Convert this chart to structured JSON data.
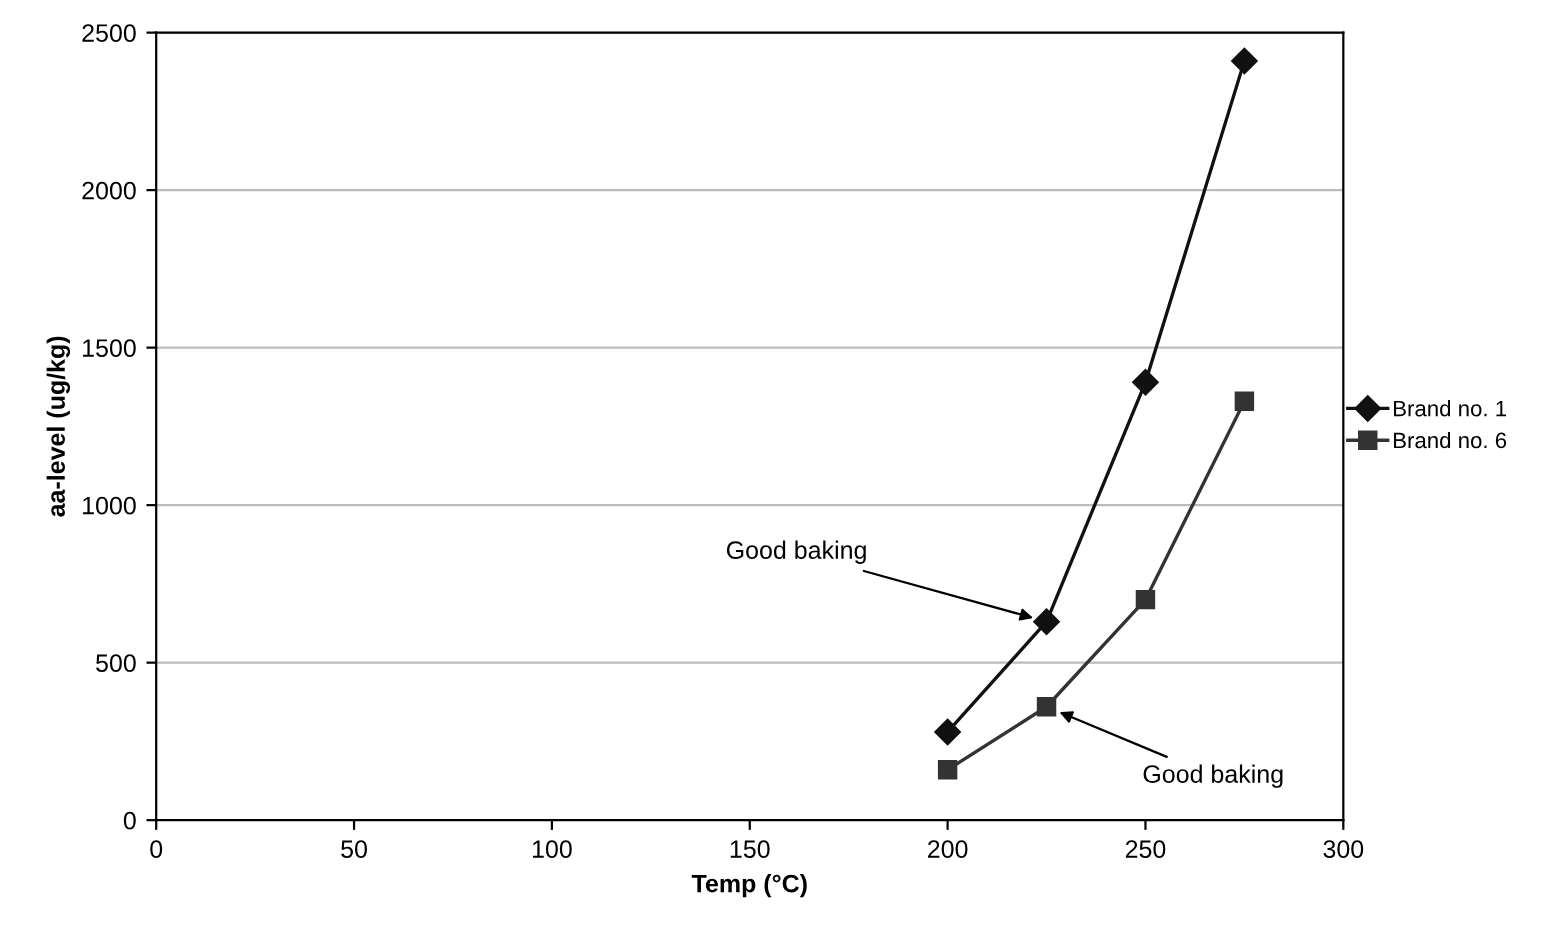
{
  "chart_data": {
    "type": "line",
    "xlabel": "Temp (°C)",
    "ylabel": "aa-level (ug/kg)",
    "x": [
      200,
      225,
      250,
      275
    ],
    "series": [
      {
        "name": "Brand no. 1",
        "color": "#111111",
        "marker": "diamond",
        "values": [
          280,
          630,
          1390,
          2410
        ]
      },
      {
        "name": "Brand no. 6",
        "color": "#333333",
        "marker": "square",
        "values": [
          160,
          360,
          700,
          1330
        ]
      }
    ],
    "xlim": [
      0,
      300
    ],
    "xticks": [
      0,
      50,
      100,
      150,
      200,
      250,
      300
    ],
    "ylim": [
      0,
      2500
    ],
    "yticks": [
      0,
      500,
      1000,
      1500,
      2000,
      2500
    ],
    "grid": "y",
    "legend": "right",
    "line_style": "solid",
    "annotations": [
      {
        "text": "Good baking",
        "x": 225,
        "y": 630
      },
      {
        "text": "Good baking",
        "x": 225,
        "y": 360
      }
    ]
  }
}
